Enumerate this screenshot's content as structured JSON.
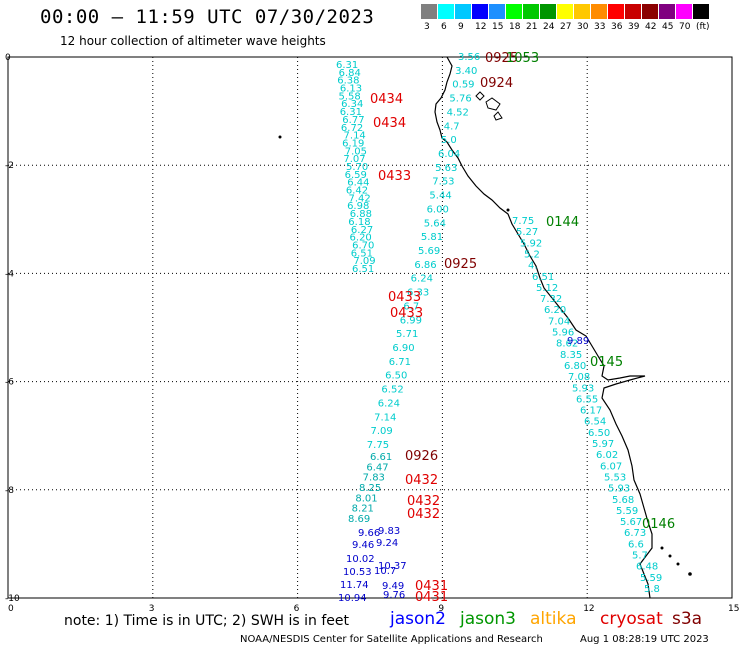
{
  "header": {
    "title": "00:00 – 11:59 UTC 07/30/2023",
    "subtitle": "12 hour collection of altimeter wave heights"
  },
  "colorbar": {
    "colors": [
      "#808080",
      "#00ffff",
      "#00c8ff",
      "#0000ff",
      "#1e90ff",
      "#00ff00",
      "#00c800",
      "#009600",
      "#ffff00",
      "#ffc800",
      "#ff8c00",
      "#ff0000",
      "#c80000",
      "#8b0000",
      "#800080",
      "#ff00ff",
      "#000000"
    ],
    "labels": [
      "3",
      "6",
      "9",
      "12",
      "15",
      "18",
      "21",
      "24",
      "27",
      "30",
      "33",
      "36",
      "39",
      "42",
      "45",
      "70",
      "(ft)"
    ]
  },
  "axes": {
    "x_ticks": [
      "0",
      "3",
      "6",
      "9",
      "12",
      "15"
    ],
    "y_ticks": [
      "0",
      "-2",
      "-4",
      "-6",
      "-8",
      "-10"
    ]
  },
  "tracks": [
    {
      "color": "#00cccc",
      "labels": [
        "6.31",
        "6.84",
        "6.38",
        "6.13",
        "5.58",
        "6.34",
        "6.31",
        "6.77",
        "6.72",
        "7.14",
        "6.19",
        "7.05",
        "7.07",
        "5.70",
        "6.59",
        "6.44",
        "6.42",
        "7.42",
        "6.98",
        "6.88",
        "6.18",
        "6.27",
        "6.20",
        "6.70",
        "6.51",
        "7.09",
        "6.51"
      ]
    },
    {
      "color": "#00cccc",
      "labels": [
        "3.56",
        "3.40",
        "0.59",
        "5.76",
        "4.52",
        "4.7",
        "5.0",
        "6.04",
        "5.63",
        "7.53",
        "5.44",
        "6.00",
        "5.64",
        "5.81",
        "5.69",
        "6.86",
        "6.24",
        "6.33",
        "6.7",
        "6.99",
        "5.71",
        "6.90",
        "6.71",
        "6.50",
        "6.52",
        "6.24",
        "7.14",
        "7.09",
        "7.75"
      ]
    },
    {
      "color": "#00cccc",
      "labels": [
        "7.75",
        "5.27",
        "5.92",
        "5.2",
        "4.",
        "6.51",
        "5.12",
        "7.32",
        "6.20",
        "7.04",
        "5.96",
        "8.62",
        "8.35",
        "6.80",
        "7.08",
        "5.93",
        "6.55",
        "6.17",
        "6.54",
        "6.50",
        "5.97",
        "6.02",
        "6.07",
        "5.53",
        "5.93",
        "5.68",
        "5.59",
        "5.67",
        "6.73",
        "6.6",
        "5.7",
        "6.48",
        "5.59",
        "5.8"
      ]
    },
    {
      "color": "#00aaaa",
      "labels": [
        "6.61",
        "6.47",
        "7.83",
        "8.25",
        "8.01",
        "8.21",
        "8.69"
      ]
    },
    {
      "color": "#0000cc",
      "labels": [
        "9.89",
        "9.66",
        "9.83",
        "9.46",
        "9.24",
        "10.02",
        "10.37",
        "10.53",
        "10.7",
        "11.74",
        "9.49",
        "10.94",
        "9.76"
      ]
    }
  ],
  "pass_labels": [
    {
      "text": "0925",
      "color": "#800000"
    },
    {
      "text": "1053",
      "color": "#008000"
    },
    {
      "text": "0924",
      "color": "#800000"
    },
    {
      "text": "0434",
      "color": "#e00000"
    },
    {
      "text": "0434",
      "color": "#e00000"
    },
    {
      "text": "0433",
      "color": "#e00000"
    },
    {
      "text": "0144",
      "color": "#008000"
    },
    {
      "text": "0925",
      "color": "#800000"
    },
    {
      "text": "0433",
      "color": "#e00000"
    },
    {
      "text": "0433",
      "color": "#e00000"
    },
    {
      "text": "0145",
      "color": "#008000"
    },
    {
      "text": "0926",
      "color": "#800000"
    },
    {
      "text": "0432",
      "color": "#e00000"
    },
    {
      "text": "0432",
      "color": "#e00000"
    },
    {
      "text": "0432",
      "color": "#e00000"
    },
    {
      "text": "0146",
      "color": "#008000"
    },
    {
      "text": "0431",
      "color": "#e00000"
    },
    {
      "text": "0431",
      "color": "#e00000"
    }
  ],
  "legend": {
    "note": "note:  1) Time is in UTC;  2) SWH is in feet",
    "satellites": [
      {
        "name": "jason2",
        "color": "#0000ff"
      },
      {
        "name": "jason3",
        "color": "#009600"
      },
      {
        "name": "altika",
        "color": "#ffa500"
      },
      {
        "name": "cryosat",
        "color": "#e00000"
      },
      {
        "name": "s3a",
        "color": "#800000"
      }
    ]
  },
  "footer": {
    "credit": "NOAA/NESDIS Center for Satellite Applications and Research",
    "timestamp": "Aug  1 08:28:19 UTC 2023"
  }
}
